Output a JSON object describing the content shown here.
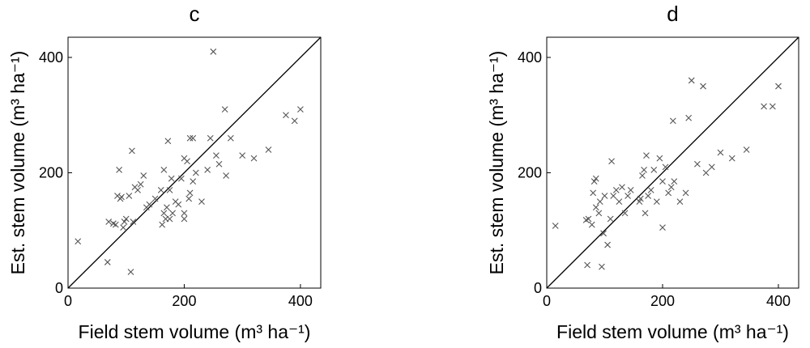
{
  "chart_data": [
    {
      "type": "scatter",
      "title": "c",
      "xlabel": "Field stem volume (m³ ha⁻¹)",
      "ylabel": "Est. stem volume (m³ ha⁻¹)",
      "xlim": [
        0,
        435
      ],
      "ylim": [
        0,
        435
      ],
      "xticks": [
        0,
        200,
        400
      ],
      "yticks": [
        0,
        200,
        400
      ],
      "identity_line": true,
      "color": "#555555",
      "x": [
        17,
        68,
        70,
        78,
        82,
        85,
        88,
        90,
        92,
        95,
        97,
        100,
        105,
        108,
        110,
        112,
        115,
        120,
        125,
        130,
        135,
        140,
        150,
        160,
        162,
        165,
        165,
        168,
        170,
        172,
        175,
        175,
        178,
        180,
        185,
        190,
        195,
        200,
        200,
        200,
        205,
        208,
        210,
        210,
        215,
        215,
        220,
        230,
        240,
        245,
        250,
        255,
        260,
        270,
        272,
        280,
        300,
        320,
        345,
        375,
        390,
        400
      ],
      "values": [
        81,
        45,
        115,
        112,
        110,
        160,
        205,
        155,
        158,
        105,
        115,
        120,
        160,
        28,
        238,
        115,
        175,
        170,
        180,
        195,
        140,
        145,
        155,
        170,
        110,
        130,
        205,
        120,
        140,
        255,
        120,
        170,
        190,
        130,
        150,
        145,
        190,
        120,
        130,
        225,
        220,
        155,
        165,
        260,
        185,
        260,
        200,
        150,
        205,
        260,
        410,
        230,
        215,
        310,
        195,
        260,
        230,
        225,
        240,
        300,
        290,
        310
      ]
    },
    {
      "type": "scatter",
      "title": "d",
      "xlabel": "Field stem volume (m³ ha⁻¹)",
      "ylabel": "Est. stem volume (m³ ha⁻¹)",
      "xlim": [
        0,
        435
      ],
      "ylim": [
        0,
        435
      ],
      "xticks": [
        0,
        200,
        400
      ],
      "yticks": [
        0,
        200,
        400
      ],
      "identity_line": true,
      "color": "#555555",
      "x": [
        15,
        68,
        70,
        72,
        78,
        80,
        82,
        85,
        85,
        90,
        92,
        95,
        98,
        100,
        105,
        110,
        112,
        115,
        120,
        125,
        130,
        135,
        140,
        145,
        160,
        162,
        165,
        168,
        170,
        172,
        175,
        180,
        185,
        190,
        195,
        200,
        200,
        205,
        210,
        215,
        218,
        220,
        230,
        240,
        245,
        250,
        260,
        270,
        275,
        285,
        300,
        320,
        345,
        375,
        390,
        400
      ],
      "values": [
        108,
        118,
        40,
        120,
        110,
        165,
        185,
        190,
        140,
        130,
        150,
        37,
        95,
        160,
        75,
        120,
        220,
        160,
        170,
        150,
        175,
        130,
        160,
        170,
        150,
        155,
        195,
        205,
        130,
        230,
        160,
        170,
        205,
        150,
        225,
        105,
        185,
        210,
        165,
        175,
        290,
        185,
        150,
        165,
        295,
        360,
        215,
        350,
        200,
        210,
        235,
        225,
        240,
        315,
        315,
        350
      ]
    }
  ]
}
